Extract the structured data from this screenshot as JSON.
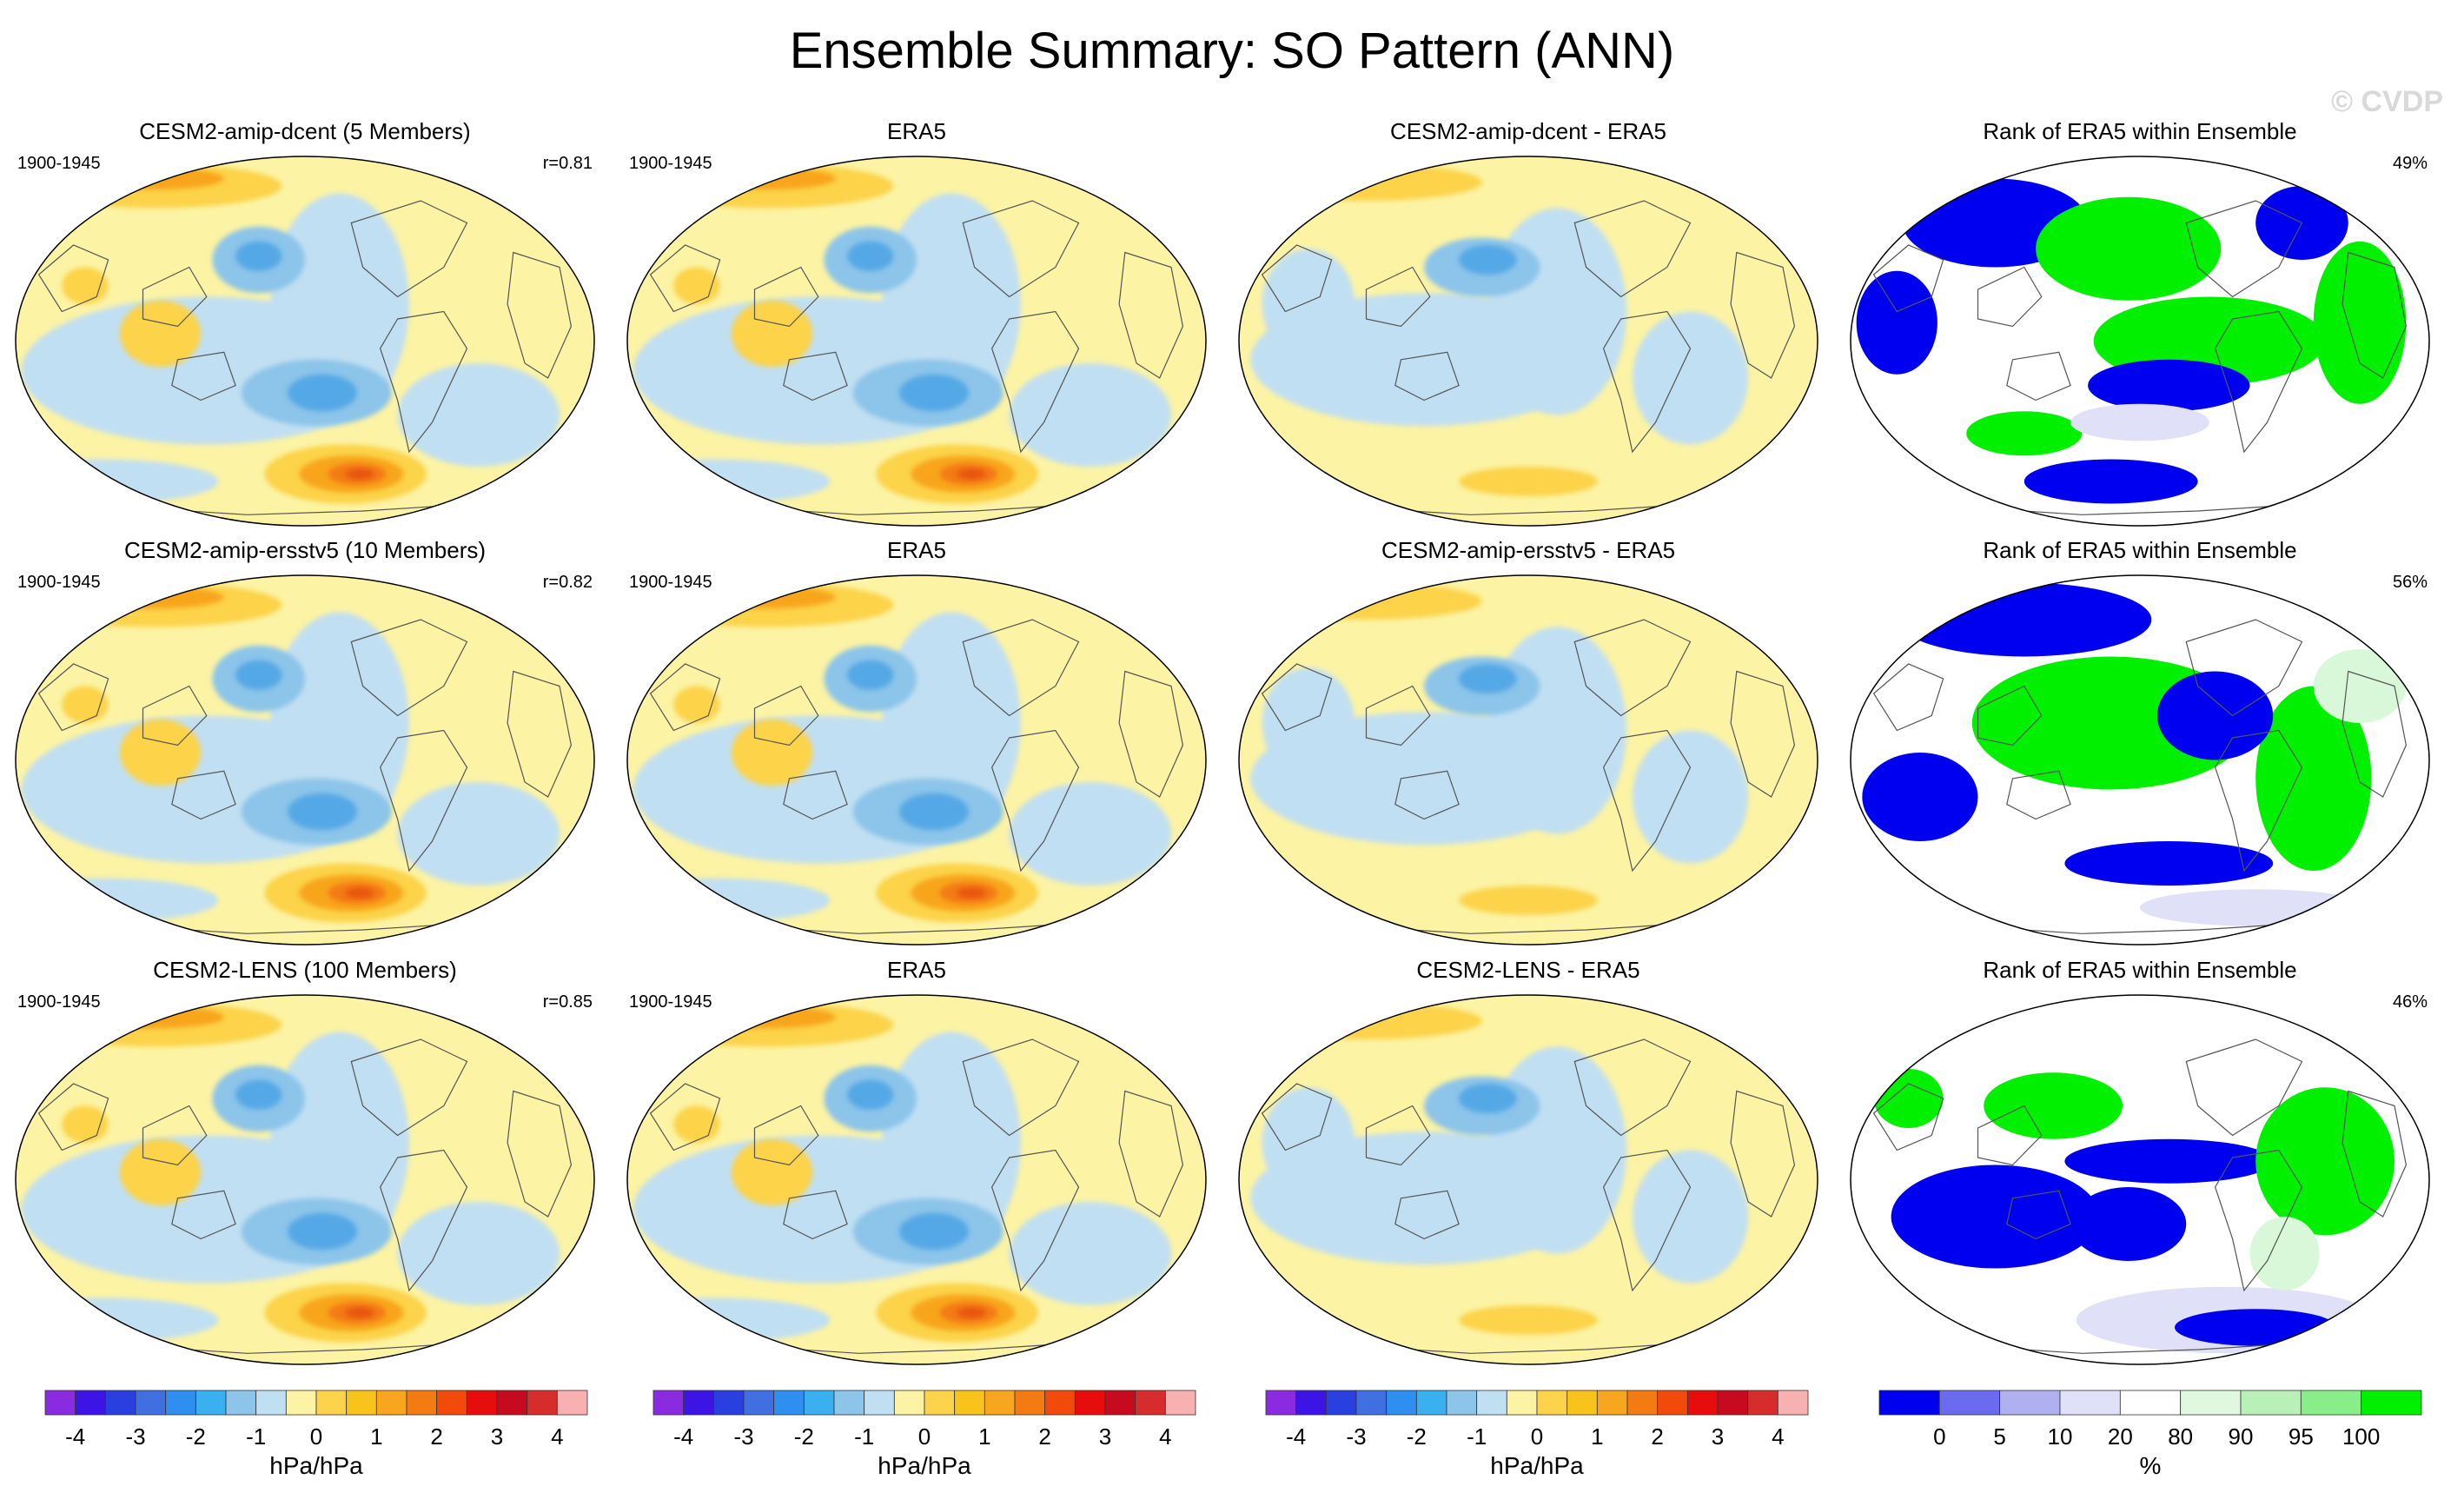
{
  "title": "Ensemble Summary: SO Pattern (ANN)",
  "watermark": "© CVDP",
  "colors": {
    "ocean_base": "#fcf3a4",
    "pos1": "#fcd34a",
    "pos2": "#f8a51f",
    "pos3": "#f47a12",
    "pos4": "#e8560c",
    "neg1": "#c1dff2",
    "neg2": "#8cc4ea",
    "neg3": "#55a8e6",
    "neg4": "#3a8fdb",
    "rank_blue": "#0000f0",
    "rank_green": "#00f000",
    "rank_light": "#e0e0f8",
    "rank_lightgreen": "#d9f7d9"
  },
  "rows": [
    {
      "panels": [
        {
          "kind": "pattern",
          "title": "CESM2-amip-dcent (5 Members)",
          "left": "1900-1945",
          "right": "r=0.81"
        },
        {
          "kind": "pattern",
          "title": "ERA5",
          "left": "1900-1945",
          "right": ""
        },
        {
          "kind": "diff",
          "title": "CESM2-amip-dcent - ERA5",
          "left": "",
          "right": ""
        },
        {
          "kind": "rank",
          "title": "Rank of ERA5 within Ensemble",
          "left": "",
          "right": "49%"
        }
      ]
    },
    {
      "panels": [
        {
          "kind": "pattern",
          "title": "CESM2-amip-ersstv5 (10 Members)",
          "left": "1900-1945",
          "right": "r=0.82"
        },
        {
          "kind": "pattern",
          "title": "ERA5",
          "left": "1900-1945",
          "right": ""
        },
        {
          "kind": "diff",
          "title": "CESM2-amip-ersstv5 - ERA5",
          "left": "",
          "right": ""
        },
        {
          "kind": "rank",
          "title": "Rank of ERA5 within Ensemble",
          "left": "",
          "right": "56%"
        }
      ]
    },
    {
      "panels": [
        {
          "kind": "pattern",
          "title": "CESM2-LENS (100 Members)",
          "left": "1900-1945",
          "right": "r=0.85"
        },
        {
          "kind": "pattern",
          "title": "ERA5",
          "left": "1900-1945",
          "right": ""
        },
        {
          "kind": "diff",
          "title": "CESM2-LENS - ERA5",
          "left": "",
          "right": ""
        },
        {
          "kind": "rank",
          "title": "Rank of ERA5 within Ensemble",
          "left": "",
          "right": "46%"
        }
      ]
    }
  ],
  "colorbars": [
    {
      "label": "hPa/hPa",
      "colors": [
        "#8a2be2",
        "#3c14e6",
        "#2a3fe0",
        "#3f6fe0",
        "#2f8ff0",
        "#3bb0f0",
        "#8cc4ea",
        "#c1dff2",
        "#fcf3a4",
        "#fcd34a",
        "#f8c31b",
        "#f8a51f",
        "#f47a12",
        "#f14a0a",
        "#e80d0d",
        "#c80a1e",
        "#d62c2c",
        "#f8b0b0"
      ],
      "ticks": [
        "-4",
        "-3",
        "-2",
        "-1",
        "0",
        "1",
        "2",
        "3",
        "4"
      ]
    },
    {
      "label": "hPa/hPa",
      "colors": [
        "#8a2be2",
        "#3c14e6",
        "#2a3fe0",
        "#3f6fe0",
        "#2f8ff0",
        "#3bb0f0",
        "#8cc4ea",
        "#c1dff2",
        "#fcf3a4",
        "#fcd34a",
        "#f8c31b",
        "#f8a51f",
        "#f47a12",
        "#f14a0a",
        "#e80d0d",
        "#c80a1e",
        "#d62c2c",
        "#f8b0b0"
      ],
      "ticks": [
        "-4",
        "-3",
        "-2",
        "-1",
        "0",
        "1",
        "2",
        "3",
        "4"
      ]
    },
    {
      "label": "hPa/hPa",
      "colors": [
        "#8a2be2",
        "#3c14e6",
        "#2a3fe0",
        "#3f6fe0",
        "#2f8ff0",
        "#3bb0f0",
        "#8cc4ea",
        "#c1dff2",
        "#fcf3a4",
        "#fcd34a",
        "#f8c31b",
        "#f8a51f",
        "#f47a12",
        "#f14a0a",
        "#e80d0d",
        "#c80a1e",
        "#d62c2c",
        "#f8b0b0"
      ],
      "ticks": [
        "-4",
        "-3",
        "-2",
        "-1",
        "0",
        "1",
        "2",
        "3",
        "4"
      ]
    },
    {
      "label": "%",
      "colors": [
        "#0000f0",
        "#6b6bf0",
        "#b0b0f0",
        "#e0e0f8",
        "#ffffff",
        "#e0f8e0",
        "#b8f0b8",
        "#88ee88",
        "#00f000"
      ],
      "ticks": [
        "0",
        "5",
        "10",
        "20",
        "80",
        "90",
        "95",
        "100"
      ]
    }
  ]
}
